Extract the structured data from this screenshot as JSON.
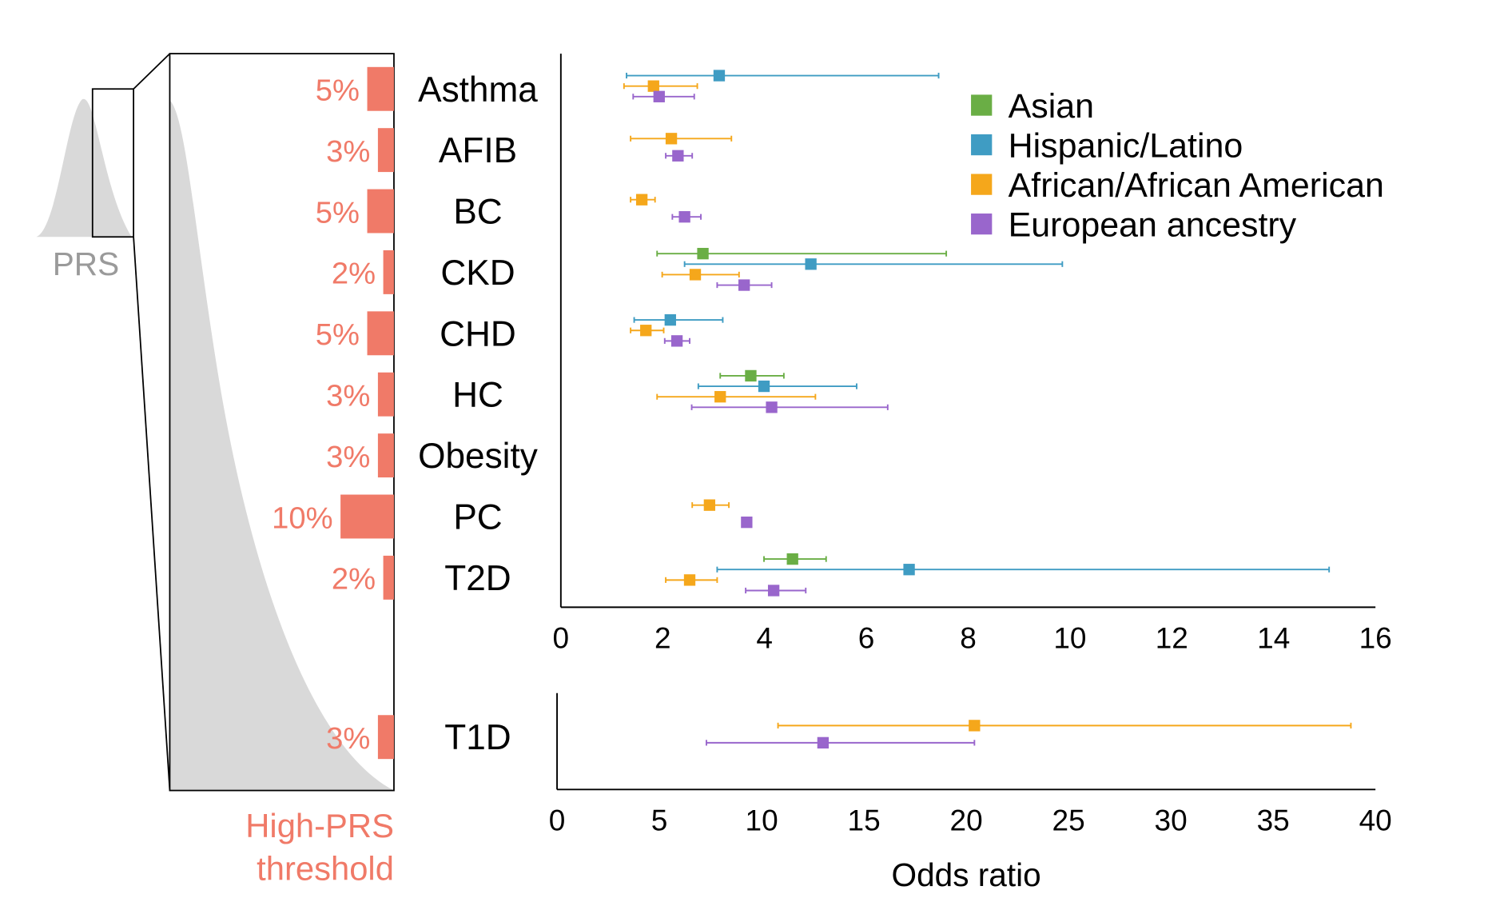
{
  "chart_data": {
    "type": "forest",
    "left_panel": {
      "distribution_label": "PRS",
      "threshold_label_line1": "High-PRS",
      "threshold_label_line2": "threshold"
    },
    "xlabel": "Odds ratio",
    "colors": {
      "Asian": "#6aae45",
      "Hispanic/Latino": "#3f9cc3",
      "African/African American": "#f5a71b",
      "European ancestry": "#9966cc",
      "threshold": "#f07a68",
      "distribution": "#d9d9d9"
    },
    "legend": {
      "placement": "top-right",
      "entries": [
        "Asian",
        "Hispanic/Latino",
        "African/African American",
        "European ancestry"
      ]
    },
    "panels": [
      {
        "name": "main",
        "xlim": [
          0,
          16
        ],
        "xticks": [
          "0",
          "2",
          "4",
          "6",
          "8",
          "10",
          "12",
          "14",
          "16"
        ],
        "diseases": [
          {
            "label": "Asthma",
            "threshold": "5%",
            "threshold_pct": 5,
            "estimates": [
              {
                "series": "Hispanic/Latino",
                "or": 3.11,
                "lo": 1.29,
                "hi": 7.42
              },
              {
                "series": "African/African American",
                "or": 1.82,
                "lo": 1.24,
                "hi": 2.68
              },
              {
                "series": "European ancestry",
                "or": 1.93,
                "lo": 1.42,
                "hi": 2.62
              }
            ]
          },
          {
            "label": "AFIB",
            "threshold": "3%",
            "threshold_pct": 3,
            "estimates": [
              {
                "series": "African/African American",
                "or": 2.17,
                "lo": 1.37,
                "hi": 3.35
              },
              {
                "series": "European ancestry",
                "or": 2.3,
                "lo": 2.06,
                "hi": 2.58
              }
            ]
          },
          {
            "label": "BC",
            "threshold": "5%",
            "threshold_pct": 5,
            "estimates": [
              {
                "series": "African/African American",
                "or": 1.59,
                "lo": 1.37,
                "hi": 1.85
              },
              {
                "series": "European ancestry",
                "or": 2.43,
                "lo": 2.19,
                "hi": 2.75
              }
            ]
          },
          {
            "label": "CKD",
            "threshold": "2%",
            "threshold_pct": 2,
            "estimates": [
              {
                "series": "Asian",
                "or": 2.79,
                "lo": 1.89,
                "hi": 7.57
              },
              {
                "series": "Hispanic/Latino",
                "or": 4.91,
                "lo": 2.43,
                "hi": 9.85
              },
              {
                "series": "African/African American",
                "or": 2.64,
                "lo": 1.99,
                "hi": 3.5
              },
              {
                "series": "European ancestry",
                "or": 3.6,
                "lo": 3.07,
                "hi": 4.14
              }
            ]
          },
          {
            "label": "CHD",
            "threshold": "5%",
            "threshold_pct": 5,
            "estimates": [
              {
                "series": "Hispanic/Latino",
                "or": 2.15,
                "lo": 1.44,
                "hi": 3.18
              },
              {
                "series": "African/African American",
                "or": 1.67,
                "lo": 1.37,
                "hi": 2.02
              },
              {
                "series": "European ancestry",
                "or": 2.28,
                "lo": 2.04,
                "hi": 2.53
              }
            ]
          },
          {
            "label": "HC",
            "threshold": "3%",
            "threshold_pct": 3,
            "estimates": [
              {
                "series": "Asian",
                "or": 3.73,
                "lo": 3.13,
                "hi": 4.38
              },
              {
                "series": "Hispanic/Latino",
                "or": 3.99,
                "lo": 2.7,
                "hi": 5.81
              },
              {
                "series": "African/African American",
                "or": 3.13,
                "lo": 1.89,
                "hi": 5.0
              },
              {
                "series": "European ancestry",
                "or": 4.14,
                "lo": 2.57,
                "hi": 6.42
              }
            ]
          },
          {
            "label": "Obesity",
            "threshold": "3%",
            "threshold_pct": 3,
            "estimates": []
          },
          {
            "label": "PC",
            "threshold": "10%",
            "threshold_pct": 10,
            "estimates": [
              {
                "series": "African/African American",
                "or": 2.92,
                "lo": 2.58,
                "hi": 3.3
              },
              {
                "series": "European ancestry",
                "or": 3.65,
                "lo": 3.6,
                "hi": 3.7
              }
            ]
          },
          {
            "label": "T2D",
            "threshold": "2%",
            "threshold_pct": 2,
            "estimates": [
              {
                "series": "Asian",
                "or": 4.55,
                "lo": 3.99,
                "hi": 5.21
              },
              {
                "series": "Hispanic/Latino",
                "or": 6.84,
                "lo": 3.07,
                "hi": 15.09
              },
              {
                "series": "African/African American",
                "or": 2.53,
                "lo": 2.06,
                "hi": 3.07
              },
              {
                "series": "European ancestry",
                "or": 4.18,
                "lo": 3.63,
                "hi": 4.81
              }
            ]
          }
        ]
      },
      {
        "name": "t1d",
        "xlim": [
          0,
          40
        ],
        "xticks": [
          "0",
          "5",
          "10",
          "15",
          "20",
          "25",
          "30",
          "35",
          "40"
        ],
        "diseases": [
          {
            "label": "T1D",
            "threshold": "3%",
            "threshold_pct": 3,
            "estimates": [
              {
                "series": "African/African American",
                "or": 20.4,
                "lo": 10.8,
                "hi": 38.8
              },
              {
                "series": "European ancestry",
                "or": 13.0,
                "lo": 7.3,
                "hi": 20.4
              }
            ]
          }
        ]
      }
    ]
  }
}
